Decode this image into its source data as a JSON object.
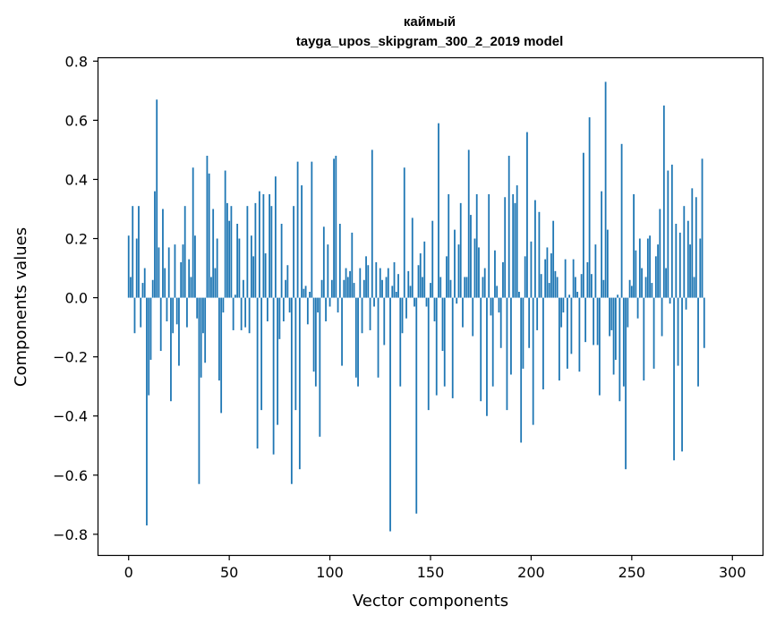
{
  "chart_data": {
    "type": "bar",
    "title": "каймый",
    "subtitle": "tayga_upos_skipgram_300_2_2019 model",
    "xlabel": "Vector components",
    "ylabel": "Components values",
    "xlim": [
      -15,
      315
    ],
    "ylim": [
      -0.87,
      0.81
    ],
    "xticks": [
      0,
      50,
      100,
      150,
      200,
      250,
      300
    ],
    "yticks": [
      -0.8,
      -0.6,
      -0.4,
      -0.2,
      0.0,
      0.2,
      0.4,
      0.6,
      0.8
    ],
    "ytick_labels": [
      "−0.8",
      "−0.6",
      "−0.4",
      "−0.2",
      "0.0",
      "0.2",
      "0.4",
      "0.6",
      "0.8"
    ],
    "grid": false,
    "bar_color": "#1f77b4",
    "values": [
      0.21,
      0.07,
      0.31,
      -0.12,
      0.2,
      0.31,
      -0.1,
      0.05,
      0.1,
      -0.77,
      -0.33,
      -0.21,
      0.06,
      0.36,
      0.67,
      0.17,
      -0.18,
      0.3,
      0.1,
      -0.08,
      0.17,
      -0.35,
      -0.12,
      0.18,
      -0.09,
      -0.23,
      0.12,
      0.18,
      0.31,
      -0.1,
      0.13,
      0.07,
      0.44,
      0.21,
      -0.07,
      -0.63,
      -0.27,
      -0.12,
      -0.22,
      0.48,
      0.42,
      0.07,
      0.3,
      0.1,
      0.2,
      -0.28,
      -0.39,
      -0.05,
      0.43,
      0.32,
      0.26,
      0.31,
      -0.11,
      0.01,
      0.25,
      0.2,
      -0.11,
      0.06,
      -0.1,
      0.31,
      -0.12,
      0.21,
      0.14,
      0.32,
      -0.51,
      0.36,
      -0.38,
      0.35,
      0.15,
      -0.08,
      0.35,
      0.31,
      -0.53,
      0.41,
      -0.43,
      -0.14,
      0.25,
      -0.08,
      0.06,
      0.11,
      -0.05,
      -0.63,
      0.31,
      -0.38,
      0.46,
      -0.58,
      0.38,
      0.03,
      0.04,
      -0.09,
      0.02,
      0.46,
      -0.25,
      -0.3,
      -0.05,
      -0.47,
      0.06,
      0.24,
      -0.08,
      0.18,
      -0.03,
      0.06,
      0.47,
      0.48,
      -0.05,
      0.25,
      -0.23,
      0.06,
      0.1,
      0.07,
      0.09,
      0.22,
      0.05,
      -0.27,
      -0.3,
      0.1,
      -0.12,
      0.06,
      0.14,
      0.11,
      -0.11,
      0.5,
      -0.03,
      0.12,
      -0.27,
      0.1,
      0.06,
      -0.16,
      0.07,
      0.1,
      -0.79,
      0.04,
      0.12,
      0.02,
      0.08,
      -0.3,
      -0.12,
      0.44,
      -0.07,
      0.09,
      0.04,
      0.27,
      -0.03,
      -0.73,
      0.11,
      0.15,
      0.07,
      0.19,
      -0.03,
      -0.38,
      0.05,
      0.26,
      -0.08,
      -0.33,
      0.59,
      0.07,
      -0.18,
      -0.3,
      0.14,
      0.35,
      0.06,
      -0.34,
      0.23,
      -0.02,
      0.18,
      0.32,
      -0.1,
      0.07,
      0.07,
      0.5,
      0.28,
      -0.13,
      0.2,
      0.35,
      0.17,
      -0.35,
      0.07,
      0.1,
      -0.4,
      0.35,
      -0.06,
      -0.3,
      0.16,
      0.04,
      -0.05,
      -0.17,
      0.12,
      0.34,
      -0.38,
      0.48,
      -0.26,
      0.35,
      0.32,
      0.38,
      0.02,
      -0.49,
      -0.24,
      0.14,
      0.56,
      -0.17,
      0.19,
      -0.43,
      0.33,
      -0.11,
      0.29,
      0.08,
      -0.31,
      0.13,
      0.17,
      0.05,
      0.15,
      0.26,
      0.09,
      0.07,
      -0.28,
      -0.1,
      -0.05,
      0.13,
      -0.24,
      0.01,
      -0.19,
      0.13,
      0.07,
      0.02,
      -0.25,
      0.08,
      0.49,
      -0.15,
      0.12,
      0.61,
      0.08,
      -0.16,
      0.18,
      -0.16,
      -0.33,
      0.36,
      0.06,
      0.73,
      0.23,
      -0.13,
      -0.11,
      -0.26,
      -0.21,
      0.01,
      -0.35,
      0.52,
      -0.3,
      -0.58,
      -0.1,
      0.06,
      0.04,
      0.35,
      0.16,
      -0.07,
      0.2,
      0.1,
      -0.28,
      0.07,
      0.2,
      0.21,
      0.05,
      -0.24,
      0.14,
      0.18,
      0.3,
      -0.13,
      0.65,
      0.1,
      0.43,
      -0.02,
      0.45,
      -0.55,
      0.25,
      -0.23,
      0.22,
      -0.52,
      0.31,
      -0.04,
      0.26,
      0.18,
      0.37,
      0.07,
      0.34,
      -0.3,
      0.2,
      0.47,
      -0.17
    ],
    "x_first": 0,
    "x_step": 1
  }
}
